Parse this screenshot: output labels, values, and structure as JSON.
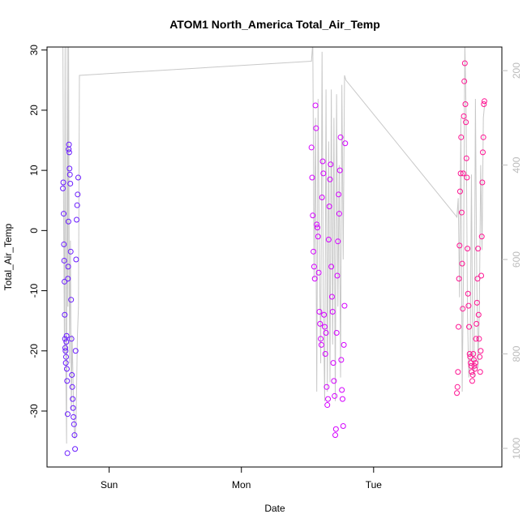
{
  "chart_data": {
    "type": "scatter",
    "title": "ATOM1 North_America Total_Air_Temp",
    "xlabel": "Date",
    "ylabel": "Total_Air_Temp",
    "xlim": [
      -0.47,
      2.97
    ],
    "xticks": [
      {
        "value": 0,
        "label": "Sun"
      },
      {
        "value": 1,
        "label": "Mon"
      },
      {
        "value": 2,
        "label": "Tue"
      }
    ],
    "ylim": [
      -39.3,
      30.5
    ],
    "yticks": [
      -30,
      -20,
      -10,
      0,
      10,
      20,
      30
    ],
    "y2lim": [
      1039.5,
      150
    ],
    "y2ticks": [
      200,
      400,
      600,
      800,
      1000
    ],
    "series": [
      {
        "color": "#6a1bff",
        "x": [
          -0.35,
          -0.347,
          -0.344,
          -0.342,
          -0.34,
          -0.338,
          -0.336,
          -0.334,
          -0.332,
          -0.33,
          -0.328,
          -0.326,
          -0.324,
          -0.322,
          -0.32,
          -0.318,
          -0.316,
          -0.314,
          -0.312,
          -0.31,
          -0.308,
          -0.306,
          -0.304,
          -0.302,
          -0.3,
          -0.297,
          -0.294,
          -0.291,
          -0.288,
          -0.285,
          -0.282,
          -0.279,
          -0.276,
          -0.273,
          -0.27,
          -0.266,
          -0.262,
          -0.258,
          -0.254,
          -0.25,
          -0.246,
          -0.242,
          -0.238,
          -0.234
        ],
        "values": [
          7,
          8,
          2.8,
          -2.3,
          -5,
          -8.5,
          -14,
          -18,
          -19.5,
          -20,
          -22,
          -21,
          -18.5,
          -17.5,
          -23,
          -25,
          -37,
          -30.5,
          -8,
          -6,
          1.5,
          13.5,
          14.3,
          13,
          10.3,
          9.3,
          7.8,
          -3.5,
          -11.5,
          -18,
          -24,
          -26,
          -28,
          -29.5,
          -31,
          -32.2,
          -34,
          -36.3,
          -20,
          -4.8,
          1.8,
          4.2,
          6,
          8.8
        ]
      },
      {
        "color": "#d400ff",
        "x": [
          1.53,
          1.535,
          1.54,
          1.545,
          1.55,
          1.555,
          1.56,
          1.565,
          1.57,
          1.575,
          1.58,
          1.585,
          1.59,
          1.595,
          1.6,
          1.605,
          1.61,
          1.615,
          1.62,
          1.625,
          1.63,
          1.635,
          1.64,
          1.645,
          1.65,
          1.655,
          1.66,
          1.665,
          1.67,
          1.675,
          1.68,
          1.685,
          1.69,
          1.695,
          1.7,
          1.705,
          1.71,
          1.715,
          1.72,
          1.725,
          1.73,
          1.735,
          1.74,
          1.745,
          1.75,
          1.755,
          1.76,
          1.765,
          1.77,
          1.775,
          1.78,
          1.785
        ],
        "values": [
          13.8,
          8.8,
          2.5,
          -3.5,
          -6,
          -8,
          20.8,
          17,
          1,
          0.5,
          -1,
          -7,
          -13.5,
          -15.5,
          -18,
          -19,
          5.5,
          11.5,
          9.5,
          -14,
          -16,
          -20.5,
          -17,
          -26,
          -29,
          -28,
          -1.5,
          4,
          8.5,
          11,
          -6,
          -11,
          -13.5,
          -22,
          -25,
          -27.5,
          -34,
          -33,
          -17,
          -7.5,
          -1.8,
          6,
          2.8,
          10,
          15.5,
          -21.5,
          -26.5,
          -28,
          -32.5,
          -19,
          -12.5,
          14.5
        ]
      },
      {
        "color": "#ff1493",
        "x": [
          2.63,
          2.634,
          2.638,
          2.642,
          2.646,
          2.65,
          2.654,
          2.658,
          2.662,
          2.666,
          2.67,
          2.674,
          2.678,
          2.682,
          2.686,
          2.69,
          2.694,
          2.698,
          2.702,
          2.706,
          2.71,
          2.714,
          2.718,
          2.722,
          2.726,
          2.73,
          2.734,
          2.738,
          2.742,
          2.746,
          2.75,
          2.754,
          2.758,
          2.762,
          2.766,
          2.77,
          2.774,
          2.778,
          2.782,
          2.786,
          2.79,
          2.794,
          2.798,
          2.802,
          2.806,
          2.81,
          2.814,
          2.818,
          2.822,
          2.826,
          2.83,
          2.834,
          2.838
        ],
        "values": [
          -27,
          -26,
          -23.5,
          -16,
          -8,
          -2.5,
          6.5,
          9.5,
          15.5,
          3,
          -5.5,
          -13,
          9.5,
          19,
          24.8,
          27.8,
          21,
          18,
          12,
          8.8,
          -3,
          -10.5,
          -12.5,
          -16,
          -20.5,
          -21,
          -22,
          -22.5,
          -23.5,
          -25,
          -24,
          -20.5,
          -21.5,
          -22.5,
          -23,
          -22,
          -18,
          -15.5,
          -12,
          -8,
          -3,
          -14,
          -18,
          -21,
          -23.5,
          -20,
          -7.5,
          -1,
          8,
          13,
          15.5,
          21,
          21.5
        ]
      }
    ],
    "line": {
      "axis": "y2",
      "color": "#c8c8c8",
      "x": [
        -0.35,
        -0.345,
        -0.338,
        -0.333,
        -0.327,
        -0.322,
        -0.317,
        -0.312,
        -0.307,
        -0.3,
        -0.293,
        -0.286,
        -0.28,
        -0.27,
        -0.26,
        -0.25,
        -0.24,
        -0.232,
        -0.225,
        1.53,
        1.54,
        1.55,
        1.56,
        1.57,
        1.58,
        1.59,
        1.6,
        1.61,
        1.62,
        1.63,
        1.64,
        1.65,
        1.66,
        1.67,
        1.68,
        1.69,
        1.7,
        1.71,
        1.72,
        1.73,
        1.74,
        1.75,
        1.76,
        1.77,
        1.78,
        1.79,
        2.63,
        2.64,
        2.65,
        2.66,
        2.67,
        2.68,
        2.69,
        2.7,
        2.71,
        2.72,
        2.73,
        2.74,
        2.75,
        2.76,
        2.77,
        2.78,
        2.79,
        2.8,
        2.81,
        2.82,
        2.83,
        2.84
      ],
      "values": [
        140,
        480,
        800,
        140,
        860,
        990,
        140,
        700,
        140,
        820,
        560,
        920,
        760,
        900,
        980,
        940,
        760,
        700,
        210,
        180,
        140,
        640,
        300,
        880,
        260,
        600,
        820,
        160,
        700,
        900,
        240,
        880,
        350,
        860,
        240,
        780,
        300,
        900,
        250,
        700,
        400,
        850,
        230,
        600,
        210,
        220,
        510,
        470,
        680,
        300,
        880,
        620,
        140,
        300,
        720,
        850,
        810,
        420,
        820,
        850,
        260,
        640,
        830,
        700,
        400,
        580,
        300,
        270
      ]
    }
  }
}
